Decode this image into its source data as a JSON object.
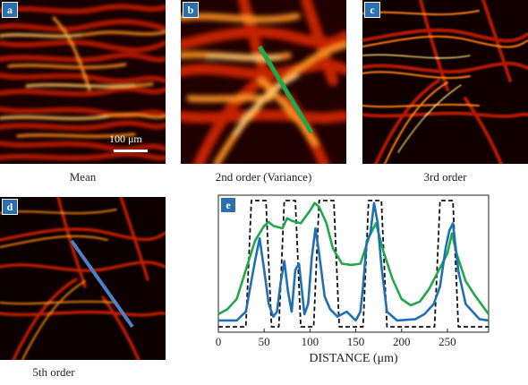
{
  "panels": {
    "a": {
      "label": "a",
      "caption": "Mean",
      "scale_text": "100 μm"
    },
    "b": {
      "label": "b",
      "caption": "2nd order (Variance)"
    },
    "c": {
      "label": "c",
      "caption": "3rd order"
    },
    "d": {
      "label": "d",
      "caption": "5th order"
    },
    "e": {
      "label": "e"
    }
  },
  "colors": {
    "badge": "#2c6fb0",
    "line_b": "#22a64a",
    "line_d": "#4f7fc4",
    "ground_truth": "#111111",
    "green_series": "#22a64a",
    "blue_series": "#1f6fb5"
  },
  "chart_data": {
    "type": "line",
    "xlabel": "DISTANCE (μm)",
    "xlim": [
      0,
      295
    ],
    "ylim": [
      0,
      1
    ],
    "xticks": [
      0,
      50,
      100,
      150,
      200,
      250
    ],
    "series": [
      {
        "color": "#111111",
        "style": "dashed",
        "x": [
          0,
          30,
          36,
          52,
          58,
          66,
          72,
          84,
          90,
          104,
          110,
          126,
          132,
          158,
          164,
          178,
          184,
          236,
          242,
          256,
          262,
          295
        ],
        "y": [
          0.0,
          0.0,
          1.0,
          1.0,
          0.0,
          0.0,
          1.0,
          1.0,
          0.0,
          0.0,
          1.0,
          1.0,
          0.0,
          0.0,
          1.0,
          1.0,
          0.0,
          0.0,
          1.0,
          1.0,
          0.0,
          0.0
        ]
      },
      {
        "color": "#22a64a",
        "style": "solid",
        "x": [
          0,
          10,
          20,
          30,
          40,
          50,
          55,
          60,
          70,
          75,
          80,
          90,
          100,
          105,
          110,
          118,
          125,
          135,
          145,
          155,
          165,
          172,
          180,
          190,
          200,
          210,
          220,
          230,
          240,
          250,
          255,
          260,
          270,
          280,
          295
        ],
        "y": [
          0.1,
          0.14,
          0.22,
          0.45,
          0.68,
          0.8,
          0.83,
          0.8,
          0.78,
          0.86,
          0.84,
          0.82,
          0.92,
          0.98,
          0.95,
          0.82,
          0.62,
          0.5,
          0.49,
          0.5,
          0.72,
          0.82,
          0.6,
          0.38,
          0.22,
          0.17,
          0.2,
          0.3,
          0.44,
          0.58,
          0.74,
          0.58,
          0.36,
          0.25,
          0.1
        ]
      },
      {
        "color": "#1f6fb5",
        "style": "solid",
        "x": [
          0,
          20,
          30,
          35,
          40,
          45,
          50,
          55,
          60,
          64,
          68,
          72,
          76,
          80,
          84,
          88,
          94,
          98,
          102,
          106,
          110,
          116,
          122,
          130,
          140,
          150,
          155,
          158,
          162,
          166,
          170,
          174,
          178,
          184,
          195,
          215,
          225,
          235,
          242,
          248,
          252,
          256,
          262,
          270,
          285,
          295
        ],
        "y": [
          0.05,
          0.05,
          0.12,
          0.32,
          0.52,
          0.7,
          0.45,
          0.18,
          0.08,
          0.12,
          0.35,
          0.52,
          0.28,
          0.12,
          0.45,
          0.5,
          0.1,
          0.18,
          0.55,
          0.78,
          0.58,
          0.24,
          0.14,
          0.08,
          0.12,
          0.05,
          0.12,
          0.32,
          0.68,
          0.74,
          0.98,
          0.82,
          0.48,
          0.12,
          0.05,
          0.06,
          0.1,
          0.18,
          0.32,
          0.62,
          0.76,
          0.82,
          0.44,
          0.18,
          0.06,
          0.05
        ]
      }
    ]
  }
}
